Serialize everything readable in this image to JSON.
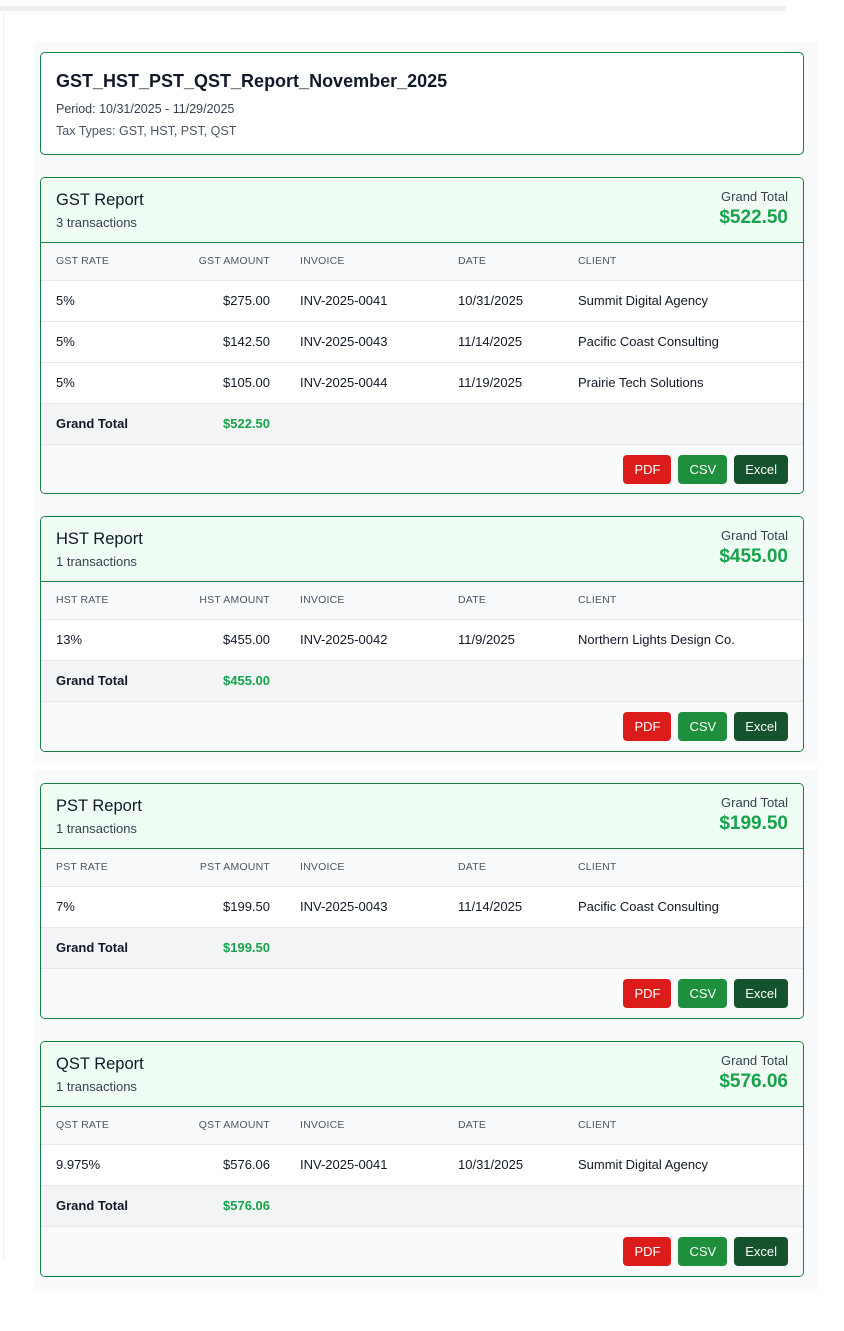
{
  "header": {
    "title": "GST_HST_PST_QST_Report_November_2025",
    "period": "Period: 10/31/2025 - 11/29/2025",
    "tax_types": "Tax Types: GST, HST, PST, QST"
  },
  "reports": [
    {
      "title": "GST Report",
      "count": "3 transactions",
      "grand_total_label": "Grand Total",
      "grand_total": "$522.50",
      "columns": [
        "GST RATE",
        "GST AMOUNT",
        "INVOICE",
        "DATE",
        "CLIENT"
      ],
      "rows": [
        [
          "5%",
          "$275.00",
          "INV-2025-0041",
          "10/31/2025",
          "Summit Digital Agency"
        ],
        [
          "5%",
          "$142.50",
          "INV-2025-0043",
          "11/14/2025",
          "Pacific Coast Consulting"
        ],
        [
          "5%",
          "$105.00",
          "INV-2025-0044",
          "11/19/2025",
          "Prairie Tech Solutions"
        ]
      ],
      "total_row_label": "Grand Total",
      "total_row_value": "$522.50",
      "buttons": [
        "PDF",
        "CSV",
        "Excel"
      ]
    },
    {
      "title": "HST Report",
      "count": "1 transactions",
      "grand_total_label": "Grand Total",
      "grand_total": "$455.00",
      "columns": [
        "HST RATE",
        "HST AMOUNT",
        "INVOICE",
        "DATE",
        "CLIENT"
      ],
      "rows": [
        [
          "13%",
          "$455.00",
          "INV-2025-0042",
          "11/9/2025",
          "Northern Lights Design Co."
        ]
      ],
      "total_row_label": "Grand Total",
      "total_row_value": "$455.00",
      "buttons": [
        "PDF",
        "CSV",
        "Excel"
      ]
    },
    {
      "title": "PST Report",
      "count": "1 transactions",
      "grand_total_label": "Grand Total",
      "grand_total": "$199.50",
      "columns": [
        "PST RATE",
        "PST AMOUNT",
        "INVOICE",
        "DATE",
        "CLIENT"
      ],
      "rows": [
        [
          "7%",
          "$199.50",
          "INV-2025-0043",
          "11/14/2025",
          "Pacific Coast Consulting"
        ]
      ],
      "total_row_label": "Grand Total",
      "total_row_value": "$199.50",
      "buttons": [
        "PDF",
        "CSV",
        "Excel"
      ]
    },
    {
      "title": "QST Report",
      "count": "1 transactions",
      "grand_total_label": "Grand Total",
      "grand_total": "$576.06",
      "columns": [
        "QST RATE",
        "QST AMOUNT",
        "INVOICE",
        "DATE",
        "CLIENT"
      ],
      "rows": [
        [
          "9.975%",
          "$576.06",
          "INV-2025-0041",
          "10/31/2025",
          "Summit Digital Agency"
        ]
      ],
      "total_row_label": "Grand Total",
      "total_row_value": "$576.06",
      "buttons": [
        "PDF",
        "CSV",
        "Excel"
      ]
    }
  ],
  "colors": {
    "accent": "#15803d",
    "total_green": "#16a34a",
    "pdf": "#dc1b1b",
    "csv": "#1e8f3c",
    "excel": "#14532d"
  }
}
